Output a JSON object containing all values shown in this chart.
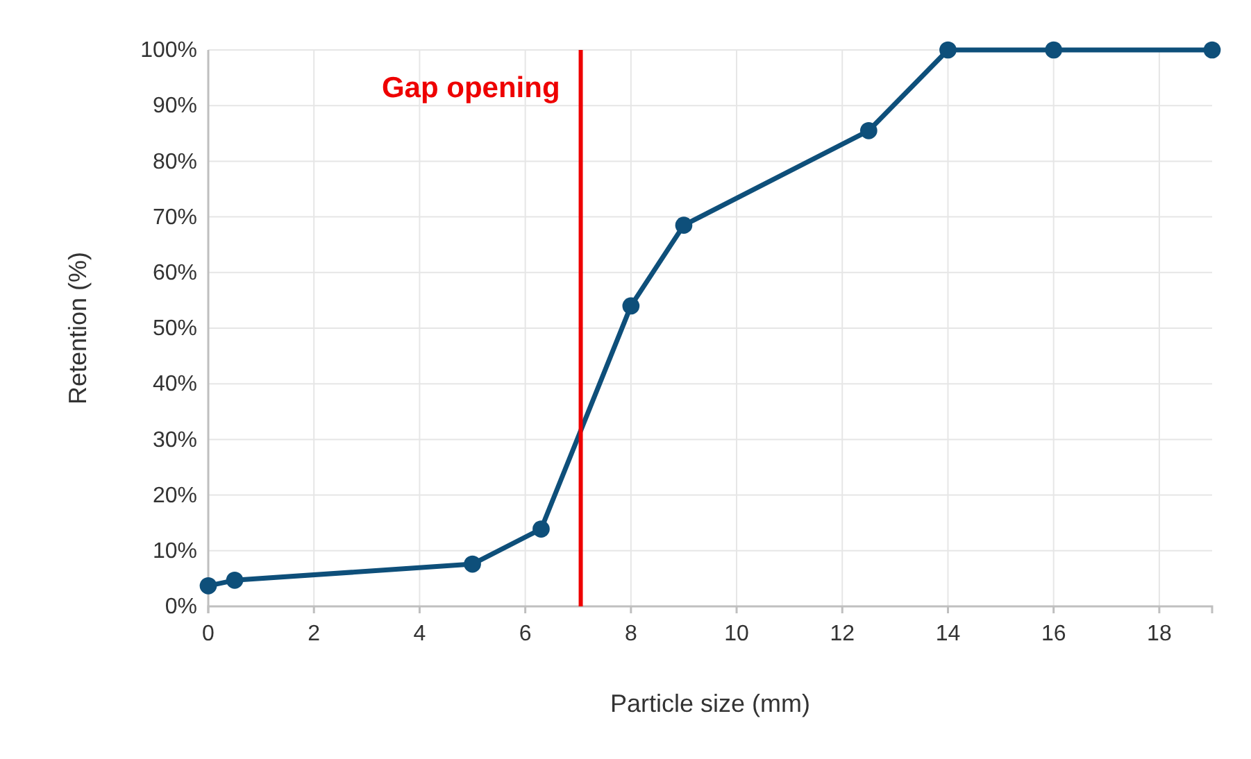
{
  "chart_data": {
    "type": "line",
    "xlabel": "Particle size (mm)",
    "ylabel": "Retention (%)",
    "x": [
      0,
      0.5,
      5,
      6.3,
      8,
      9,
      12.5,
      14,
      16,
      19
    ],
    "series": [
      {
        "color": "#0e4f7a",
        "values": [
          3.7,
          4.7,
          7.6,
          13.9,
          54,
          68.5,
          85.5,
          100,
          100,
          100
        ]
      }
    ],
    "xlim": [
      0,
      19
    ],
    "xticks": [
      0,
      2,
      4,
      6,
      8,
      10,
      12,
      14,
      16,
      18
    ],
    "ylim": [
      0,
      100
    ],
    "yticks": [
      {
        "value": 0,
        "label": "0%"
      },
      {
        "value": 10,
        "label": "10%"
      },
      {
        "value": 20,
        "label": "20%"
      },
      {
        "value": 30,
        "label": "30%"
      },
      {
        "value": 40,
        "label": "40%"
      },
      {
        "value": 50,
        "label": "50%"
      },
      {
        "value": 60,
        "label": "60%"
      },
      {
        "value": 70,
        "label": "70%"
      },
      {
        "value": 80,
        "label": "80%"
      },
      {
        "value": 90,
        "label": "90%"
      },
      {
        "value": 100,
        "label": "100%"
      }
    ],
    "ref_lines": [
      {
        "axis": "x",
        "value": 7.05,
        "label": "Gap opening",
        "color": "#ee0000"
      }
    ],
    "grid": true,
    "marker": "circle",
    "line_style": "solid"
  }
}
